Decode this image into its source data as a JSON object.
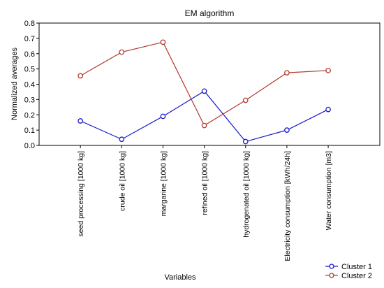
{
  "chart_data": {
    "type": "line",
    "title": "EM algorithm",
    "xlabel": "Variables",
    "ylabel": "Normalized averages",
    "ylim": [
      0,
      0.8
    ],
    "yticks": [
      "0.0",
      "0.1",
      "0.2",
      "0.3",
      "0.4",
      "0.5",
      "0.6",
      "0.7",
      "0.8"
    ],
    "grid": false,
    "legend_position": "bottom-right",
    "categories": [
      "seed processing [1000 kg]",
      "crude oil [1000 kg]",
      "margarine [1000 kg]",
      "refined oil [1000 kg]",
      "hydrogenated oil [1000 kg]",
      "Electricity consumption [kWh/24h]",
      "Water consumption [m3]"
    ],
    "series": [
      {
        "name": "Cluster 1",
        "color": "#1a1acc",
        "values": [
          0.16,
          0.04,
          0.19,
          0.355,
          0.025,
          0.1,
          0.235
        ]
      },
      {
        "name": "Cluster 2",
        "color": "#b03a2e",
        "values": [
          0.455,
          0.61,
          0.675,
          0.13,
          0.295,
          0.475,
          0.49
        ]
      }
    ]
  }
}
